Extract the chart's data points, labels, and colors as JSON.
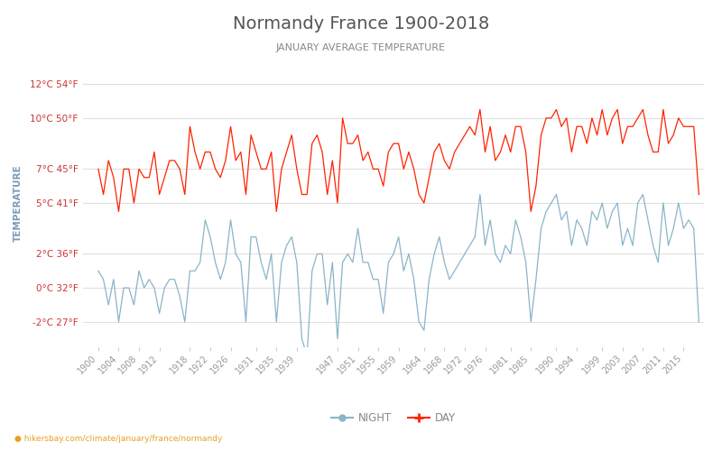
{
  "title": "Normandy France 1900-2018",
  "subtitle": "JANUARY AVERAGE TEMPERATURE",
  "ylabel": "TEMPERATURE",
  "xlabel_url": "hikersbay.com/climate/january/france/normandy",
  "title_color": "#555555",
  "subtitle_color": "#888888",
  "ylabel_color": "#7a9ab5",
  "background_color": "#ffffff",
  "grid_color": "#e0e0e0",
  "day_color": "#ff2200",
  "night_color": "#8ab4c8",
  "yticks_celsius": [
    12,
    10,
    7,
    5,
    2,
    0,
    -2
  ],
  "yticks_fahrenheit": [
    54,
    50,
    45,
    41,
    36,
    32,
    27
  ],
  "years": [
    1900,
    1901,
    1902,
    1903,
    1904,
    1905,
    1906,
    1907,
    1908,
    1909,
    1910,
    1911,
    1912,
    1913,
    1914,
    1915,
    1916,
    1917,
    1918,
    1919,
    1920,
    1921,
    1922,
    1923,
    1924,
    1925,
    1926,
    1927,
    1928,
    1929,
    1930,
    1931,
    1932,
    1933,
    1934,
    1935,
    1936,
    1937,
    1938,
    1939,
    1940,
    1941,
    1942,
    1943,
    1944,
    1945,
    1946,
    1947,
    1948,
    1949,
    1950,
    1951,
    1952,
    1953,
    1954,
    1955,
    1956,
    1957,
    1958,
    1959,
    1960,
    1961,
    1962,
    1963,
    1964,
    1965,
    1966,
    1967,
    1968,
    1969,
    1970,
    1971,
    1972,
    1973,
    1974,
    1975,
    1976,
    1977,
    1978,
    1979,
    1980,
    1981,
    1982,
    1983,
    1984,
    1985,
    1986,
    1987,
    1988,
    1989,
    1990,
    1991,
    1992,
    1993,
    1994,
    1995,
    1996,
    1997,
    1998,
    1999,
    2000,
    2001,
    2002,
    2003,
    2004,
    2005,
    2006,
    2007,
    2008,
    2009,
    2010,
    2011,
    2012,
    2013,
    2014,
    2015,
    2016,
    2017,
    2018
  ],
  "day_temps": [
    7.0,
    5.5,
    7.5,
    6.5,
    4.5,
    7.0,
    7.0,
    5.0,
    7.0,
    6.5,
    6.5,
    8.0,
    5.5,
    6.5,
    7.5,
    7.5,
    7.0,
    5.5,
    9.5,
    8.0,
    7.0,
    8.0,
    8.0,
    7.0,
    6.5,
    7.5,
    9.5,
    7.5,
    8.0,
    5.5,
    9.0,
    8.0,
    7.0,
    7.0,
    8.0,
    4.5,
    7.0,
    8.0,
    9.0,
    7.0,
    5.5,
    5.5,
    8.5,
    9.0,
    8.0,
    5.5,
    7.5,
    5.0,
    10.0,
    8.5,
    8.5,
    9.0,
    7.5,
    8.0,
    7.0,
    7.0,
    6.0,
    8.0,
    8.5,
    8.5,
    7.0,
    8.0,
    7.0,
    5.5,
    5.0,
    6.5,
    8.0,
    8.5,
    7.5,
    7.0,
    8.0,
    8.5,
    9.0,
    9.5,
    9.0,
    10.5,
    8.0,
    9.5,
    7.5,
    8.0,
    9.0,
    8.0,
    9.5,
    9.5,
    8.0,
    4.5,
    6.0,
    9.0,
    10.0,
    10.0,
    10.5,
    9.5,
    10.0,
    8.0,
    9.5,
    9.5,
    8.5,
    10.0,
    9.0,
    10.5,
    9.0,
    10.0,
    10.5,
    8.5,
    9.5,
    9.5,
    10.0,
    10.5,
    9.0,
    8.0,
    8.0,
    10.5,
    8.5,
    9.0,
    10.0,
    9.5,
    9.5,
    9.5,
    5.5
  ],
  "night_temps": [
    1.0,
    0.5,
    -1.0,
    0.5,
    -2.0,
    0.0,
    0.0,
    -1.0,
    1.0,
    0.0,
    0.5,
    0.0,
    -1.5,
    0.0,
    0.5,
    0.5,
    -0.5,
    -2.0,
    1.0,
    1.0,
    1.5,
    4.0,
    3.0,
    1.5,
    0.5,
    1.5,
    4.0,
    2.0,
    1.5,
    -2.0,
    3.0,
    3.0,
    1.5,
    0.5,
    2.0,
    -2.0,
    1.5,
    2.5,
    3.0,
    1.5,
    -3.0,
    -4.0,
    1.0,
    2.0,
    2.0,
    -1.0,
    1.5,
    -3.0,
    1.5,
    2.0,
    1.5,
    3.5,
    1.5,
    1.5,
    0.5,
    0.5,
    -1.5,
    1.5,
    2.0,
    3.0,
    1.0,
    2.0,
    0.5,
    -2.0,
    -2.5,
    0.5,
    2.0,
    3.0,
    1.5,
    0.5,
    1.0,
    1.5,
    2.0,
    2.5,
    3.0,
    5.5,
    2.5,
    4.0,
    2.0,
    1.5,
    2.5,
    2.0,
    4.0,
    3.0,
    1.5,
    -2.0,
    0.5,
    3.5,
    4.5,
    5.0,
    5.5,
    4.0,
    4.5,
    2.5,
    4.0,
    3.5,
    2.5,
    4.5,
    4.0,
    5.0,
    3.5,
    4.5,
    5.0,
    2.5,
    3.5,
    2.5,
    5.0,
    5.5,
    4.0,
    2.5,
    1.5,
    5.0,
    2.5,
    3.5,
    5.0,
    3.5,
    4.0,
    3.5,
    -2.0
  ],
  "xtick_positions": [
    1900,
    1904,
    1908,
    1912,
    1918,
    1922,
    1926,
    1931,
    1935,
    1939,
    1947,
    1951,
    1955,
    1959,
    1964,
    1968,
    1972,
    1976,
    1981,
    1985,
    1990,
    1994,
    1999,
    2003,
    2007,
    2011,
    2015
  ],
  "xtick_labels": [
    "1900",
    "1904",
    "1908",
    "1912",
    "1918",
    "1922",
    "1926",
    "1931",
    "1935",
    "1939",
    "1947",
    "1951",
    "1955",
    "1959",
    "1964",
    "1968",
    "1972",
    "1976",
    "1981",
    "1985",
    "1990",
    "1994",
    "1999",
    "2003",
    "2007",
    "2011",
    "2015"
  ],
  "legend_night": "NIGHT",
  "legend_day": "DAY",
  "ylim": [
    -3.5,
    13.5
  ],
  "xlim": [
    1897,
    2019
  ]
}
